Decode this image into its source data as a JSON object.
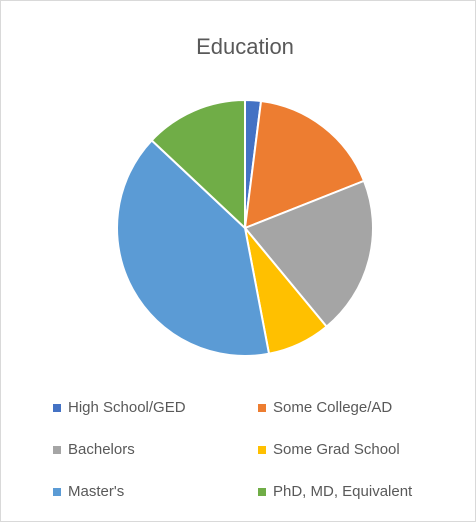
{
  "chart_data": {
    "type": "pie",
    "title": "Education",
    "categories": [
      "High School/GED",
      "Some College/AD",
      "Bachelors",
      "Some Grad School",
      "Master's",
      "PhD, MD, Equivalent"
    ],
    "values": [
      2,
      17,
      20,
      8,
      40,
      13
    ],
    "colors": [
      "#4472c4",
      "#ed7d31",
      "#a5a5a5",
      "#ffc000",
      "#5b9bd5",
      "#70ad47"
    ],
    "legend": "bottom"
  }
}
